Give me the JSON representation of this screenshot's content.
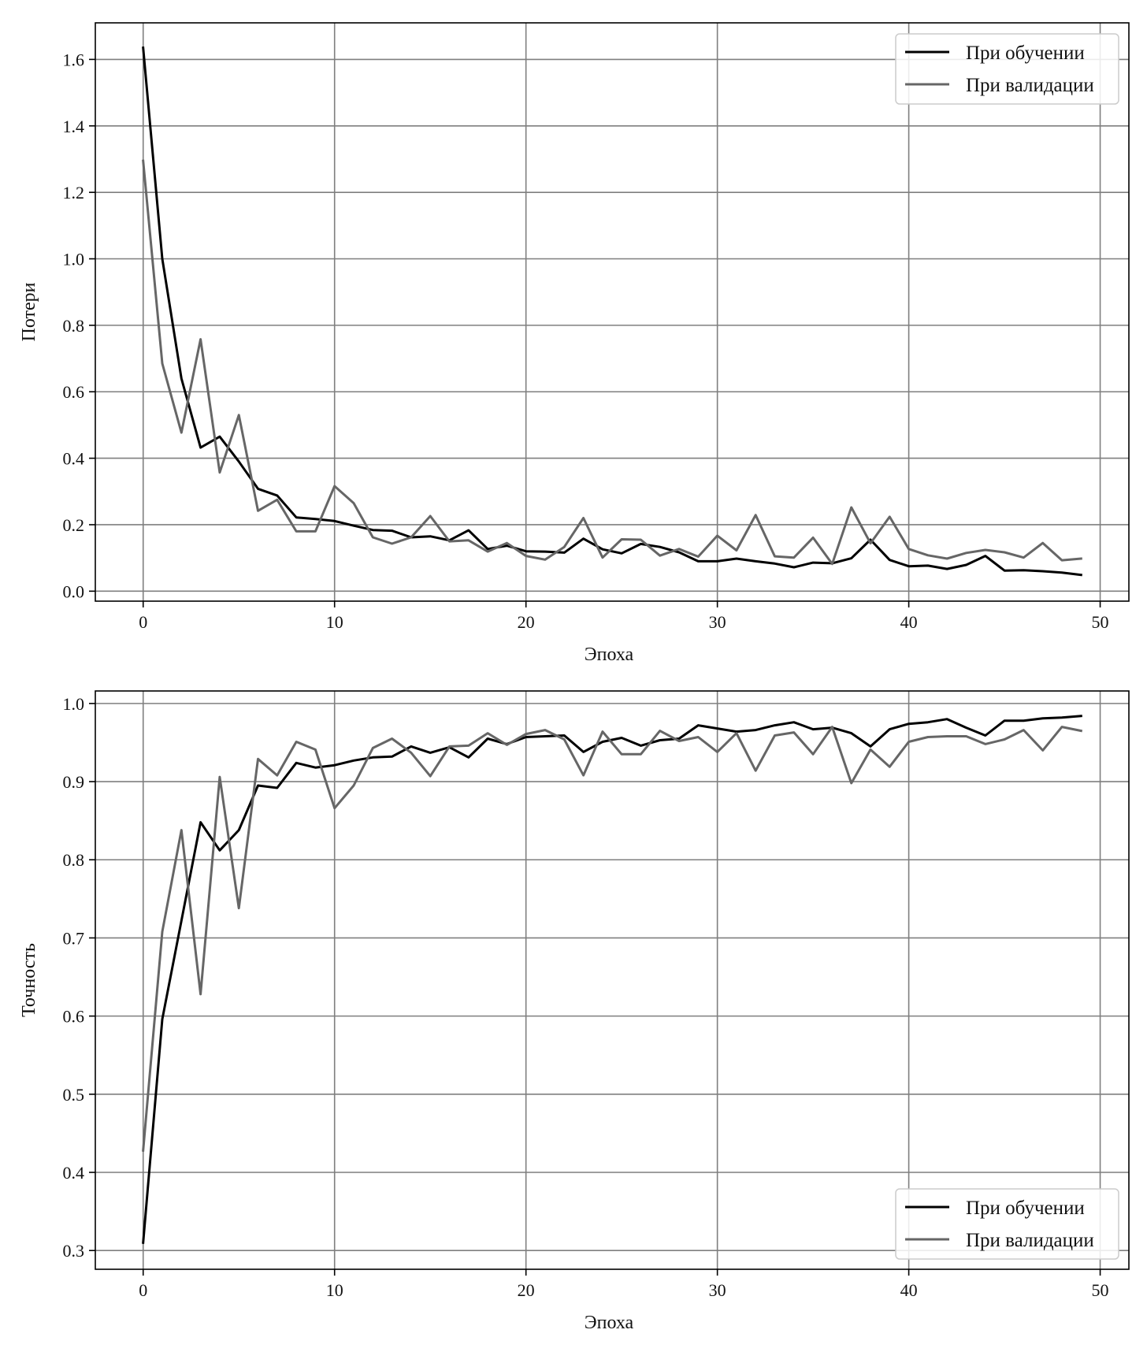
{
  "chart_data": [
    {
      "type": "line",
      "xlabel": "Эпоха",
      "ylabel": "Потери",
      "xlim": [
        -2.5,
        51.5
      ],
      "ylim": [
        -0.03,
        1.71
      ],
      "xticks": [
        0,
        10,
        20,
        30,
        40,
        50
      ],
      "yticks": [
        0.0,
        0.2,
        0.4,
        0.6,
        0.8,
        1.0,
        1.2,
        1.4,
        1.6
      ],
      "ytick_decimals": 1,
      "grid": true,
      "legend_position": "top-right",
      "x": [
        0,
        1,
        2,
        3,
        4,
        5,
        6,
        7,
        8,
        9,
        10,
        11,
        12,
        13,
        14,
        15,
        16,
        17,
        18,
        19,
        20,
        21,
        22,
        23,
        24,
        25,
        26,
        27,
        28,
        29,
        30,
        31,
        32,
        33,
        34,
        35,
        36,
        37,
        38,
        39,
        40,
        41,
        42,
        43,
        44,
        45,
        46,
        47,
        48,
        49
      ],
      "series": [
        {
          "name": "При обучении",
          "color": "#000000",
          "values": [
            1.635,
            1.0,
            0.64,
            0.432,
            0.465,
            0.39,
            0.308,
            0.288,
            0.222,
            0.217,
            0.211,
            0.197,
            0.184,
            0.182,
            0.162,
            0.165,
            0.153,
            0.183,
            0.127,
            0.137,
            0.12,
            0.119,
            0.116,
            0.158,
            0.126,
            0.114,
            0.142,
            0.133,
            0.117,
            0.09,
            0.09,
            0.098,
            0.09,
            0.083,
            0.072,
            0.086,
            0.084,
            0.099,
            0.155,
            0.094,
            0.075,
            0.077,
            0.067,
            0.079,
            0.106,
            0.062,
            0.063,
            0.06,
            0.056,
            0.049
          ]
        },
        {
          "name": "При валидации",
          "color": "#666666",
          "values": [
            1.295,
            0.685,
            0.477,
            0.758,
            0.357,
            0.53,
            0.242,
            0.275,
            0.18,
            0.18,
            0.316,
            0.265,
            0.162,
            0.143,
            0.162,
            0.226,
            0.15,
            0.153,
            0.119,
            0.145,
            0.106,
            0.095,
            0.133,
            0.22,
            0.101,
            0.156,
            0.155,
            0.107,
            0.127,
            0.104,
            0.167,
            0.123,
            0.229,
            0.105,
            0.101,
            0.161,
            0.082,
            0.252,
            0.144,
            0.224,
            0.127,
            0.108,
            0.098,
            0.115,
            0.124,
            0.117,
            0.101,
            0.145,
            0.093,
            0.098
          ]
        }
      ]
    },
    {
      "type": "line",
      "xlabel": "Эпоха",
      "ylabel": "Точность",
      "xlim": [
        -2.5,
        51.5
      ],
      "ylim": [
        0.276,
        1.016
      ],
      "xticks": [
        0,
        10,
        20,
        30,
        40,
        50
      ],
      "yticks": [
        0.3,
        0.4,
        0.5,
        0.6,
        0.7,
        0.8,
        0.9,
        1.0
      ],
      "ytick_decimals": 1,
      "grid": true,
      "legend_position": "bottom-right",
      "x": [
        0,
        1,
        2,
        3,
        4,
        5,
        6,
        7,
        8,
        9,
        10,
        11,
        12,
        13,
        14,
        15,
        16,
        17,
        18,
        19,
        20,
        21,
        22,
        23,
        24,
        25,
        26,
        27,
        28,
        29,
        30,
        31,
        32,
        33,
        34,
        35,
        36,
        37,
        38,
        39,
        40,
        41,
        42,
        43,
        44,
        45,
        46,
        47,
        48,
        49
      ],
      "series": [
        {
          "name": "При обучении",
          "color": "#000000",
          "values": [
            0.31,
            0.596,
            0.722,
            0.848,
            0.812,
            0.838,
            0.895,
            0.892,
            0.924,
            0.918,
            0.921,
            0.927,
            0.931,
            0.932,
            0.945,
            0.937,
            0.944,
            0.931,
            0.955,
            0.948,
            0.957,
            0.958,
            0.959,
            0.938,
            0.951,
            0.956,
            0.946,
            0.953,
            0.955,
            0.972,
            0.968,
            0.964,
            0.966,
            0.972,
            0.976,
            0.967,
            0.969,
            0.962,
            0.945,
            0.967,
            0.974,
            0.976,
            0.98,
            0.969,
            0.959,
            0.978,
            0.978,
            0.981,
            0.982,
            0.984
          ]
        },
        {
          "name": "При валидации",
          "color": "#666666",
          "values": [
            0.428,
            0.708,
            0.838,
            0.628,
            0.906,
            0.738,
            0.929,
            0.908,
            0.951,
            0.941,
            0.866,
            0.895,
            0.943,
            0.955,
            0.937,
            0.907,
            0.945,
            0.946,
            0.962,
            0.947,
            0.961,
            0.966,
            0.954,
            0.908,
            0.964,
            0.935,
            0.935,
            0.965,
            0.952,
            0.957,
            0.938,
            0.962,
            0.914,
            0.959,
            0.963,
            0.935,
            0.97,
            0.898,
            0.941,
            0.919,
            0.951,
            0.957,
            0.958,
            0.958,
            0.948,
            0.954,
            0.966,
            0.94,
            0.97,
            0.965
          ]
        }
      ]
    }
  ]
}
